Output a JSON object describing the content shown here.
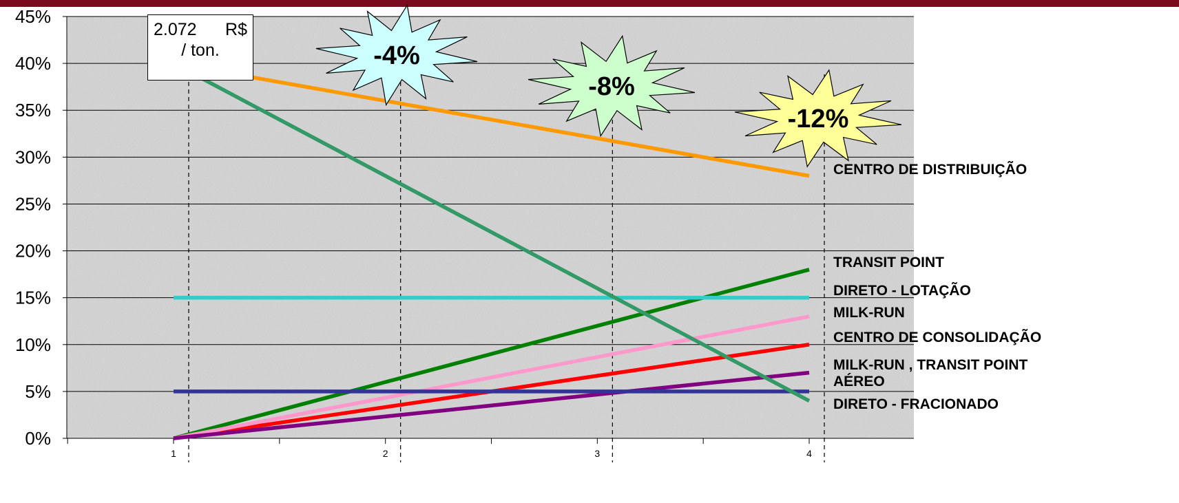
{
  "colors": {
    "top_bar": "#7a0a1e",
    "plot_background": "#d6d6d6",
    "gridline": "#000000"
  },
  "chart_data": {
    "type": "line",
    "x": [
      1,
      2,
      3,
      4
    ],
    "x_tick_labels": [
      "1",
      "2",
      "3",
      "4"
    ],
    "ylim": [
      0,
      45
    ],
    "y_tick_labels": [
      "0%",
      "5%",
      "10%",
      "15%",
      "20%",
      "25%",
      "30%",
      "35%",
      "40%",
      "45%"
    ],
    "grid": "horizontal",
    "series": [
      {
        "key": "cd",
        "name": "CENTRO  DE DISTRIBUIÇÃO",
        "color": "#ff9900",
        "values": [
          40,
          36,
          32,
          28
        ]
      },
      {
        "key": "tp",
        "name": "TRANSIT POINT",
        "color": "#008000",
        "values": [
          0,
          6,
          12,
          18
        ]
      },
      {
        "key": "dl",
        "name": "DIRETO - LOTAÇÃO",
        "color": "#33cccc",
        "values": [
          15,
          15,
          15,
          15
        ]
      },
      {
        "key": "mr",
        "name": "MILK-RUN",
        "color": "#ff99cc",
        "values": [
          0,
          4.33,
          8.67,
          13
        ]
      },
      {
        "key": "cc",
        "name": "CENTRO DE CONSOLIDAÇÃO",
        "color": "#ff0000",
        "values": [
          0,
          3.33,
          6.67,
          10
        ]
      },
      {
        "key": "mrtp",
        "name": "MILK-RUN , TRANSIT POINT",
        "color": "#800080",
        "values": [
          0,
          2.33,
          4.67,
          7
        ]
      },
      {
        "key": "aereo",
        "name": "AÉREO",
        "color": "#333399",
        "values": [
          5,
          5,
          5,
          5
        ]
      },
      {
        "key": "df",
        "name": "DIRETO - FRACIONADO",
        "color": "#339966",
        "values": [
          40,
          28,
          16,
          4
        ]
      }
    ],
    "annotations": [
      {
        "x": 2,
        "text": "-4%",
        "color": "#ccffff"
      },
      {
        "x": 3,
        "text": "-8%",
        "color": "#ccffcc"
      },
      {
        "x": 4,
        "text": "-12%",
        "color": "#ffff99"
      }
    ],
    "callout": {
      "line1_left": "2.072",
      "line1_right": "R$",
      "line2": "/ ton."
    }
  }
}
